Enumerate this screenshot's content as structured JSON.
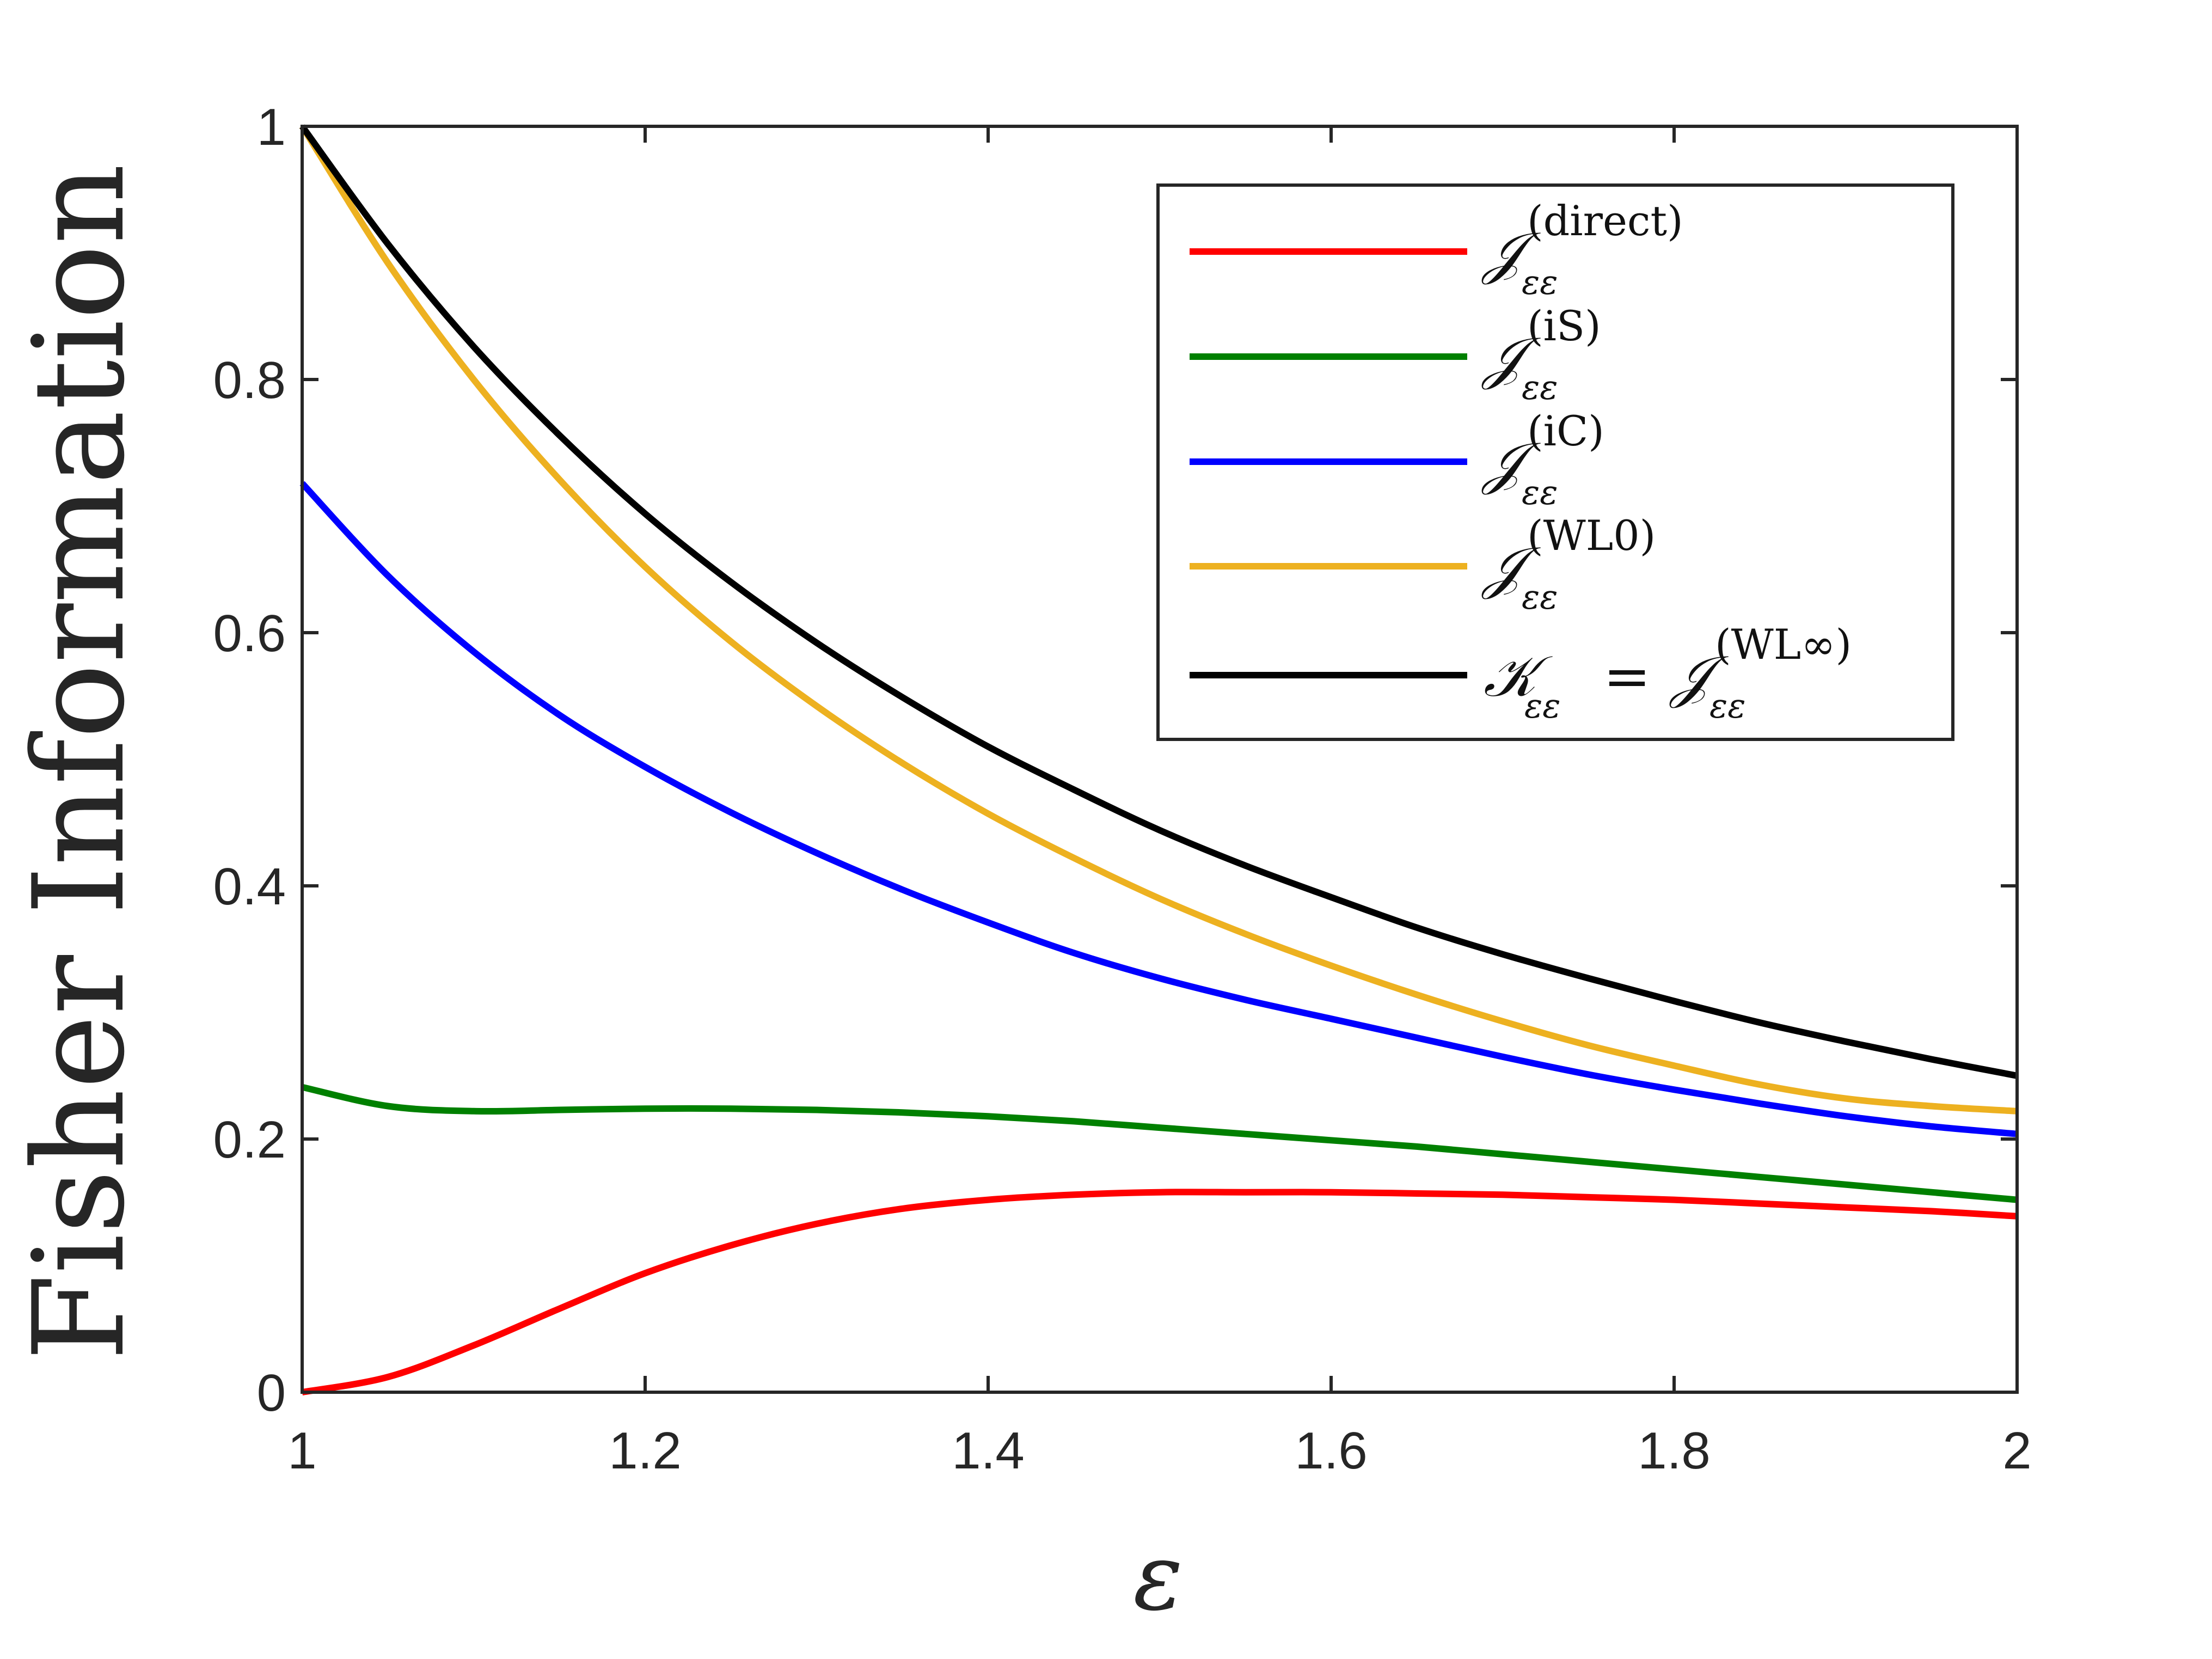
{
  "chart_data": {
    "type": "line",
    "title": "",
    "xlabel": "ε",
    "ylabel": "Fisher Information",
    "xlim": [
      1,
      2
    ],
    "ylim": [
      0,
      1
    ],
    "xticks": [
      1,
      1.2,
      1.4,
      1.6,
      1.8,
      2
    ],
    "yticks": [
      0,
      0.2,
      0.4,
      0.6,
      0.8,
      1
    ],
    "xtick_labels": [
      "1",
      "1.2",
      "1.4",
      "1.6",
      "1.8",
      "2"
    ],
    "ytick_labels": [
      "0",
      "0.2",
      "0.4",
      "0.6",
      "0.8",
      "1"
    ],
    "grid": false,
    "legend_position": "top-right",
    "x": [
      1.0,
      1.05,
      1.1,
      1.15,
      1.2,
      1.25,
      1.3,
      1.35,
      1.4,
      1.45,
      1.5,
      1.55,
      1.6,
      1.65,
      1.7,
      1.75,
      1.8,
      1.85,
      1.9,
      1.95,
      2.0
    ],
    "series": [
      {
        "name": "direct",
        "legend": {
          "main": "𝒥",
          "sub": "εε",
          "sup": "(direct)",
          "prefix": "",
          "eq": ""
        },
        "color": "#ff0000",
        "values": [
          0.0,
          0.012,
          0.037,
          0.066,
          0.094,
          0.116,
          0.133,
          0.145,
          0.152,
          0.156,
          0.158,
          0.158,
          0.158,
          0.157,
          0.156,
          0.154,
          0.152,
          0.149,
          0.146,
          0.143,
          0.139
        ]
      },
      {
        "name": "iS",
        "legend": {
          "main": "𝒥",
          "sub": "εε",
          "sup": "(iS)",
          "prefix": "",
          "eq": ""
        },
        "color": "#008000",
        "values": [
          0.241,
          0.226,
          0.222,
          0.223,
          0.224,
          0.224,
          0.223,
          0.221,
          0.218,
          0.214,
          0.209,
          0.204,
          0.199,
          0.194,
          0.188,
          0.182,
          0.176,
          0.17,
          0.164,
          0.158,
          0.152
        ]
      },
      {
        "name": "iC",
        "legend": {
          "main": "𝒥",
          "sub": "εε",
          "sup": "(iC)",
          "prefix": "",
          "eq": ""
        },
        "color": "#0000ff",
        "values": [
          0.718,
          0.645,
          0.585,
          0.535,
          0.494,
          0.458,
          0.426,
          0.397,
          0.371,
          0.347,
          0.327,
          0.31,
          0.295,
          0.28,
          0.265,
          0.251,
          0.239,
          0.228,
          0.218,
          0.21,
          0.204
        ]
      },
      {
        "name": "WL0",
        "legend": {
          "main": "𝒥",
          "sub": "εε",
          "sup": "(WL0)",
          "prefix": "",
          "eq": ""
        },
        "color": "#edb120",
        "values": [
          1.0,
          0.892,
          0.8,
          0.721,
          0.652,
          0.593,
          0.542,
          0.497,
          0.457,
          0.422,
          0.39,
          0.362,
          0.337,
          0.314,
          0.293,
          0.274,
          0.258,
          0.243,
          0.232,
          0.226,
          0.222
        ]
      },
      {
        "name": "WLinf",
        "legend": {
          "main": "𝒥",
          "sub": "εε",
          "sup": "(WL∞)",
          "prefix": "𝒦",
          "eq": "="
        },
        "color": "#000000",
        "values": [
          1.0,
          0.907,
          0.826,
          0.756,
          0.694,
          0.64,
          0.592,
          0.549,
          0.51,
          0.476,
          0.444,
          0.416,
          0.391,
          0.367,
          0.346,
          0.327,
          0.309,
          0.292,
          0.277,
          0.263,
          0.25
        ]
      }
    ]
  }
}
